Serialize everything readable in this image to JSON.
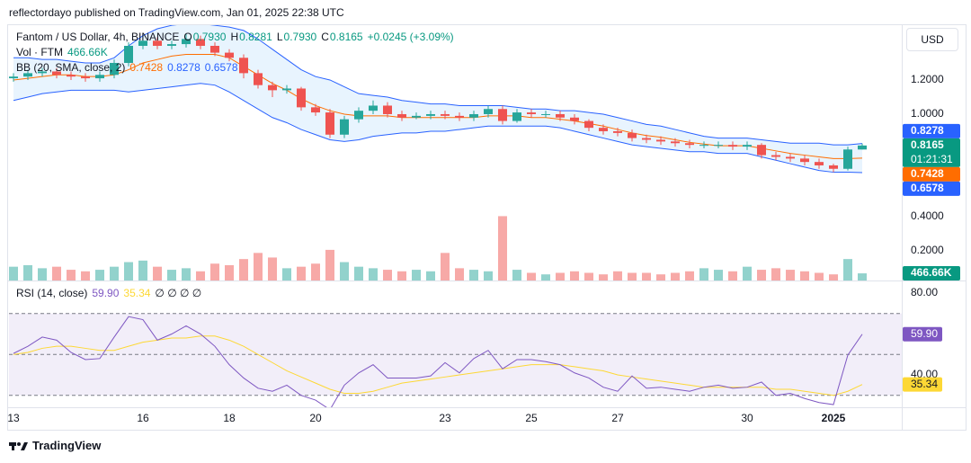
{
  "header": {
    "byline": "reflectordayo published on TradingView.com, Jan 01, 2025 22:38 UTC"
  },
  "footer": {
    "brand": "TradingView"
  },
  "chart_data": {
    "type": "candlestick",
    "title": "Fantom / US Dollar, 4h, BINANCE",
    "currency": "USD",
    "x": [
      0,
      8,
      16,
      24,
      32,
      40,
      48,
      56,
      64,
      72,
      80,
      88,
      96,
      104,
      112,
      120,
      128,
      136,
      144,
      152,
      160,
      168,
      176,
      184,
      192,
      200,
      208,
      216,
      224,
      232,
      240,
      248,
      256,
      264,
      272,
      280,
      288,
      296,
      304,
      312,
      320,
      328,
      336,
      344,
      352,
      360,
      368,
      376,
      384,
      392,
      400,
      408,
      416,
      424,
      432,
      440,
      448,
      456,
      464,
      472
    ],
    "xlim": [
      -2.5,
      494
    ],
    "xticks": [
      {
        "value": 0,
        "label": "13"
      },
      {
        "value": 72,
        "label": "16"
      },
      {
        "value": 120,
        "label": "18"
      },
      {
        "value": 168,
        "label": "20"
      },
      {
        "value": 240,
        "label": "23"
      },
      {
        "value": 288,
        "label": "25"
      },
      {
        "value": 336,
        "label": "27"
      },
      {
        "value": 408,
        "label": "30"
      },
      {
        "value": 456,
        "label": "2025"
      }
    ],
    "ylim": [
      0.026,
      1.521
    ],
    "yticks": [
      {
        "value": 1.2,
        "label": "1.2000"
      },
      {
        "value": 1.0,
        "label": "1.0000"
      },
      {
        "value": 0.4,
        "label": "0.4000"
      },
      {
        "value": 0.2,
        "label": "0.2000"
      }
    ],
    "up_color": "#26a69a",
    "down_color": "#ef5350",
    "open": [
      1.21,
      1.22,
      1.24,
      1.25,
      1.23,
      1.22,
      1.21,
      1.23,
      1.3,
      1.4,
      1.43,
      1.4,
      1.41,
      1.44,
      1.4,
      1.36,
      1.33,
      1.24,
      1.17,
      1.14,
      1.15,
      1.04,
      1.01,
      0.88,
      0.97,
      1.02,
      1.05,
      1.0,
      0.98,
      0.99,
      1.0,
      0.99,
      0.98,
      1.0,
      1.03,
      0.96,
      1.01,
      1.0,
      1.0,
      0.98,
      0.96,
      0.92,
      0.9,
      0.89,
      0.86,
      0.85,
      0.84,
      0.83,
      0.82,
      0.82,
      0.82,
      0.81,
      0.82,
      0.76,
      0.75,
      0.74,
      0.72,
      0.7,
      0.68,
      0.793
    ],
    "high": [
      1.24,
      1.26,
      1.27,
      1.27,
      1.25,
      1.24,
      1.25,
      1.32,
      1.42,
      1.46,
      1.45,
      1.43,
      1.47,
      1.46,
      1.42,
      1.38,
      1.35,
      1.26,
      1.19,
      1.17,
      1.16,
      1.06,
      1.03,
      0.99,
      1.04,
      1.08,
      1.07,
      1.02,
      1.01,
      1.02,
      1.02,
      1.01,
      1.02,
      1.05,
      1.05,
      1.03,
      1.03,
      1.02,
      1.02,
      1.0,
      0.97,
      0.94,
      0.92,
      0.91,
      0.88,
      0.87,
      0.86,
      0.85,
      0.84,
      0.84,
      0.84,
      0.84,
      0.83,
      0.78,
      0.77,
      0.76,
      0.74,
      0.71,
      0.81,
      0.8281
    ],
    "low": [
      1.19,
      1.2,
      1.22,
      1.21,
      1.2,
      1.19,
      1.19,
      1.21,
      1.28,
      1.38,
      1.38,
      1.38,
      1.39,
      1.38,
      1.34,
      1.31,
      1.21,
      1.15,
      1.1,
      1.12,
      1.02,
      0.99,
      0.86,
      0.86,
      0.95,
      1.0,
      0.98,
      0.96,
      0.97,
      0.97,
      0.97,
      0.96,
      0.96,
      0.98,
      0.94,
      0.95,
      0.98,
      0.98,
      0.96,
      0.94,
      0.9,
      0.88,
      0.87,
      0.84,
      0.83,
      0.82,
      0.81,
      0.8,
      0.8,
      0.8,
      0.79,
      0.79,
      0.74,
      0.73,
      0.72,
      0.7,
      0.68,
      0.66,
      0.67,
      0.793
    ],
    "close": [
      1.22,
      1.24,
      1.25,
      1.23,
      1.22,
      1.21,
      1.23,
      1.3,
      1.4,
      1.43,
      1.4,
      1.41,
      1.44,
      1.4,
      1.36,
      1.33,
      1.24,
      1.17,
      1.14,
      1.15,
      1.04,
      1.01,
      0.88,
      0.97,
      1.02,
      1.05,
      1.0,
      0.98,
      0.99,
      1.0,
      0.99,
      0.98,
      1.0,
      1.03,
      0.96,
      1.01,
      1.0,
      1.0,
      0.98,
      0.96,
      0.92,
      0.9,
      0.89,
      0.86,
      0.85,
      0.84,
      0.83,
      0.82,
      0.82,
      0.82,
      0.81,
      0.82,
      0.76,
      0.75,
      0.74,
      0.72,
      0.7,
      0.68,
      0.793,
      0.8165
    ],
    "volume": {
      "name": "Vol · FTM",
      "ylim": [
        0,
        5000000
      ],
      "up_color": "rgba(38,166,154,0.5)",
      "down_color": "rgba(239,83,80,0.5)",
      "values": [
        900000,
        1000000,
        800000,
        900000,
        700000,
        600000,
        700000,
        900000,
        1200000,
        1300000,
        900000,
        700000,
        800000,
        600000,
        1100000,
        1000000,
        1400000,
        1800000,
        1500000,
        800000,
        900000,
        1100000,
        2000000,
        1200000,
        900000,
        800000,
        700000,
        600000,
        700000,
        600000,
        1800000,
        800000,
        700000,
        600000,
        4200000,
        700000,
        500000,
        400000,
        500000,
        600000,
        500000,
        400000,
        600000,
        500000,
        500000,
        400000,
        500000,
        600000,
        800000,
        700000,
        600000,
        900000,
        700000,
        800000,
        700000,
        600000,
        500000,
        400000,
        1400000,
        466660
      ],
      "label": "466.66K",
      "label_color": "#089981"
    },
    "bollinger": {
      "name": "BB (20, SMA, close, 2)",
      "band_color": "#2962ff",
      "middle_color": "#ff6d00",
      "fill": "rgba(33,150,243,0.1)",
      "upper": [
        1.33,
        1.33,
        1.32,
        1.32,
        1.31,
        1.3,
        1.3,
        1.33,
        1.4,
        1.46,
        1.5,
        1.52,
        1.53,
        1.53,
        1.52,
        1.51,
        1.49,
        1.44,
        1.38,
        1.32,
        1.26,
        1.22,
        1.2,
        1.16,
        1.12,
        1.11,
        1.1,
        1.08,
        1.07,
        1.06,
        1.06,
        1.05,
        1.05,
        1.05,
        1.05,
        1.04,
        1.03,
        1.03,
        1.02,
        1.02,
        1.01,
        1.0,
        0.98,
        0.96,
        0.94,
        0.93,
        0.91,
        0.89,
        0.87,
        0.86,
        0.86,
        0.86,
        0.85,
        0.84,
        0.83,
        0.83,
        0.83,
        0.82,
        0.82,
        0.8278
      ],
      "middle": [
        1.2,
        1.21,
        1.22,
        1.23,
        1.23,
        1.22,
        1.22,
        1.23,
        1.26,
        1.3,
        1.32,
        1.34,
        1.35,
        1.35,
        1.35,
        1.33,
        1.28,
        1.23,
        1.18,
        1.14,
        1.09,
        1.05,
        1.02,
        1.0,
        0.99,
        0.99,
        0.99,
        0.98,
        0.98,
        0.98,
        0.98,
        0.98,
        0.98,
        0.99,
        0.99,
        0.99,
        0.98,
        0.98,
        0.97,
        0.96,
        0.945,
        0.93,
        0.91,
        0.89,
        0.875,
        0.865,
        0.85,
        0.835,
        0.825,
        0.815,
        0.815,
        0.815,
        0.8,
        0.785,
        0.77,
        0.76,
        0.75,
        0.74,
        0.74,
        0.7428
      ],
      "lower": [
        1.08,
        1.1,
        1.12,
        1.13,
        1.14,
        1.14,
        1.14,
        1.14,
        1.13,
        1.14,
        1.15,
        1.16,
        1.17,
        1.18,
        1.17,
        1.13,
        1.08,
        1.03,
        0.98,
        0.95,
        0.91,
        0.88,
        0.85,
        0.84,
        0.85,
        0.87,
        0.88,
        0.89,
        0.89,
        0.9,
        0.9,
        0.91,
        0.92,
        0.93,
        0.93,
        0.93,
        0.93,
        0.93,
        0.92,
        0.9,
        0.88,
        0.86,
        0.84,
        0.82,
        0.81,
        0.8,
        0.79,
        0.78,
        0.78,
        0.77,
        0.77,
        0.77,
        0.75,
        0.73,
        0.71,
        0.69,
        0.67,
        0.66,
        0.66,
        0.6578
      ]
    },
    "axis_badges": [
      {
        "value": 0.8278,
        "label": "0.8278",
        "color": "#2962ff"
      },
      {
        "value": 0.8165,
        "label": "0.8165",
        "sublabel": "01:21:31",
        "color": "#089981"
      },
      {
        "value": 0.7428,
        "label": "0.7428",
        "color": "#ff6d00"
      },
      {
        "value": 0.6578,
        "label": "0.6578",
        "color": "#2962ff"
      }
    ],
    "legend": {
      "o_label": "O",
      "open": "0.7930",
      "h_label": "H",
      "high": "0.8281",
      "l_label": "L",
      "low": "0.7930",
      "c_label": "C",
      "close": "0.8165",
      "change": "+0.0245 (+3.09%)",
      "value_color": "#089981"
    },
    "rsi": {
      "name": "RSI (14, close)",
      "color": "#7e57c2",
      "ma_color": "#fdd835",
      "band_fill": "rgba(126,87,194,0.1)",
      "extra": "∅ ∅ ∅ ∅",
      "ylim": [
        24.2,
        85.7
      ],
      "yticks": [
        {
          "value": 80,
          "label": "80.00"
        },
        {
          "value": 40,
          "label": "40.00"
        }
      ],
      "bands": [
        70,
        50,
        30
      ],
      "values": [
        50.5,
        54,
        58.5,
        57,
        51,
        47.5,
        48,
        58.5,
        68.5,
        67,
        57,
        60,
        64,
        60,
        54,
        45,
        38.5,
        33.5,
        32,
        35,
        30,
        27.7,
        23,
        35,
        41,
        45,
        38.5,
        38.5,
        38.5,
        39.5,
        46,
        41,
        48,
        52,
        43,
        47.5,
        47.5,
        46.5,
        45,
        41,
        38.5,
        34,
        32,
        39.5,
        33.5,
        34,
        33,
        32,
        34,
        35,
        33.5,
        34,
        36.5,
        30,
        31,
        28.5,
        26.5,
        25.5,
        49.7,
        59.9
      ],
      "ma": [
        50,
        51,
        53,
        54,
        54,
        53,
        52,
        52,
        54,
        56,
        57,
        58,
        58,
        59,
        59,
        57,
        54,
        50,
        46,
        42,
        39,
        36,
        33,
        31,
        31,
        32,
        34,
        36,
        37,
        38,
        39,
        40,
        41,
        42,
        43,
        44,
        45,
        45,
        45,
        44,
        43,
        42,
        40,
        39,
        38,
        37,
        36,
        35,
        34,
        34,
        34,
        34,
        34,
        33,
        33,
        32,
        31,
        30,
        32,
        35.34
      ],
      "badges": [
        {
          "value": 59.9,
          "label": "59.90",
          "color": "#7e57c2"
        },
        {
          "value": 35.34,
          "label": "35.34",
          "color": "#fdd835"
        }
      ]
    }
  }
}
